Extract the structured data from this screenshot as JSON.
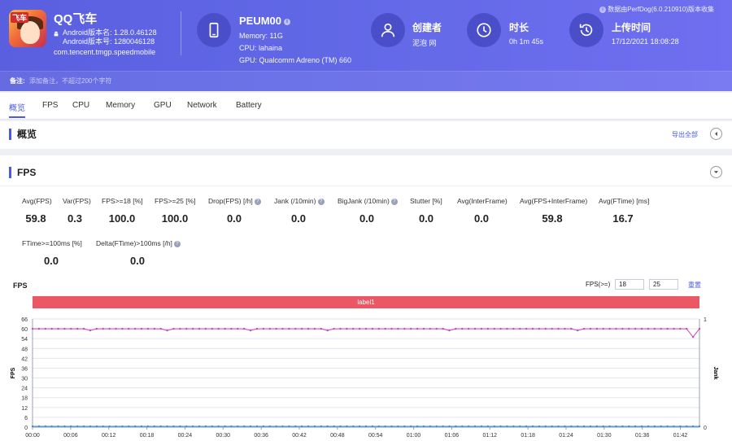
{
  "header": {
    "app_name": "QQ飞车",
    "app_version_name": "Android版本名: 1.28.0.46128",
    "app_version_code": "Android版本号: 1280046128",
    "package": "com.tencent.tmgp.speedmobile",
    "device_name": "PEUM00",
    "memory": "Memory: 11G",
    "cpu": "CPU: lahaina",
    "gpu": "GPU: Qualcomm Adreno (TM) 660",
    "creator_title": "创建者",
    "creator_value": "泥泡 网",
    "duration_title": "时长",
    "duration_value": "0h 1m 45s",
    "upload_title": "上传时间",
    "upload_value": "17/12/2021 18:08:28",
    "perfdog_note": "数据由PerfDog(6.0.210910)版本收集",
    "remark_label": "备注:",
    "remark_placeholder": "添加备注，不超过200个字符"
  },
  "tabs": [
    "概览",
    "FPS",
    "CPU",
    "Memory",
    "GPU",
    "Network",
    "Battery"
  ],
  "overview": {
    "title": "概览",
    "export_label": "导出全部"
  },
  "fps_section": {
    "title": "FPS",
    "metrics_row1": [
      {
        "label": "Avg(FPS)",
        "value": "59.8",
        "help": false
      },
      {
        "label": "Var(FPS)",
        "value": "0.3",
        "help": false
      },
      {
        "label": "FPS>=18 [%]",
        "value": "100.0",
        "help": false
      },
      {
        "label": "FPS>=25 [%]",
        "value": "100.0",
        "help": false
      },
      {
        "label": "Drop(FPS) [/h]",
        "value": "0.0",
        "help": true
      },
      {
        "label": "Jank (/10min)",
        "value": "0.0",
        "help": true
      },
      {
        "label": "BigJank (/10min)",
        "value": "0.0",
        "help": true
      },
      {
        "label": "Stutter [%]",
        "value": "0.0",
        "help": false
      },
      {
        "label": "Avg(InterFrame)",
        "value": "0.0",
        "help": false
      },
      {
        "label": "Avg(FPS+InterFrame)",
        "value": "59.8",
        "help": false
      },
      {
        "label": "Avg(FTime) [ms]",
        "value": "16.7",
        "help": false
      }
    ],
    "metrics_row2": [
      {
        "label": "FTime>=100ms [%]",
        "value": "0.0",
        "help": false
      },
      {
        "label": "Delta(FTime)>100ms [/h]",
        "value": "0.0",
        "help": true
      }
    ]
  },
  "chart_controls": {
    "title": "FPS",
    "fps_ge_label": "FPS(>=)",
    "threshold1": "18",
    "threshold2": "25",
    "reset_label": "重置",
    "label_bar": "label1"
  },
  "chart_data": {
    "type": "line",
    "ylabel": "FPS",
    "y2label": "Jank",
    "ylim": [
      0,
      66
    ],
    "yticks": [
      0,
      6,
      12,
      18,
      24,
      30,
      36,
      42,
      48,
      54,
      60,
      66
    ],
    "y2ticks": [
      0,
      1
    ],
    "xticks": [
      "00:00",
      "00:06",
      "00:12",
      "00:18",
      "00:24",
      "00:30",
      "00:36",
      "00:42",
      "00:48",
      "00:54",
      "01:00",
      "01:06",
      "01:12",
      "01:18",
      "01:24",
      "01:30",
      "01:36",
      "01:42"
    ],
    "x_seconds_max": 105,
    "series": [
      {
        "name": "FPS",
        "color": "#d23fbf",
        "values": [
          60,
          60,
          60,
          60,
          60,
          60,
          60,
          60,
          60,
          59,
          60,
          60,
          60,
          60,
          60,
          60,
          60,
          60,
          60,
          60,
          60,
          59,
          60,
          60,
          60,
          60,
          60,
          60,
          60,
          60,
          60,
          60,
          60,
          60,
          59,
          60,
          60,
          60,
          60,
          60,
          60,
          60,
          60,
          60,
          60,
          60,
          59,
          60,
          60,
          60,
          60,
          60,
          60,
          60,
          60,
          60,
          60,
          60,
          60,
          60,
          60,
          60,
          60,
          60,
          60,
          59,
          60,
          60,
          60,
          60,
          60,
          60,
          60,
          60,
          60,
          60,
          60,
          60,
          60,
          60,
          60,
          60,
          60,
          60,
          60,
          59,
          60,
          60,
          60,
          60,
          60,
          60,
          60,
          60,
          60,
          60,
          60,
          60,
          60,
          60,
          60,
          60,
          60,
          55,
          60
        ]
      },
      {
        "name": "Jank",
        "color": "#3a8fd9",
        "values": [
          0,
          0,
          0,
          0,
          0,
          0,
          0,
          0,
          0,
          0,
          0,
          0,
          0,
          0,
          0,
          0,
          0,
          0,
          0,
          0,
          0,
          0,
          0,
          0,
          0,
          0,
          0,
          0,
          0,
          0,
          0,
          0,
          0,
          0,
          0,
          0,
          0,
          0,
          0,
          0,
          0,
          0,
          0,
          0,
          0,
          0,
          0,
          0,
          0,
          0,
          0,
          0,
          0,
          0,
          0,
          0,
          0,
          0,
          0,
          0,
          0,
          0,
          0,
          0,
          0,
          0,
          0,
          0,
          0,
          0,
          0,
          0,
          0,
          0,
          0,
          0,
          0,
          0,
          0,
          0,
          0,
          0,
          0,
          0,
          0,
          0,
          0,
          0,
          0,
          0,
          0,
          0,
          0,
          0,
          0,
          0,
          0,
          0,
          0,
          0,
          0,
          0,
          0,
          0,
          0
        ]
      }
    ]
  }
}
